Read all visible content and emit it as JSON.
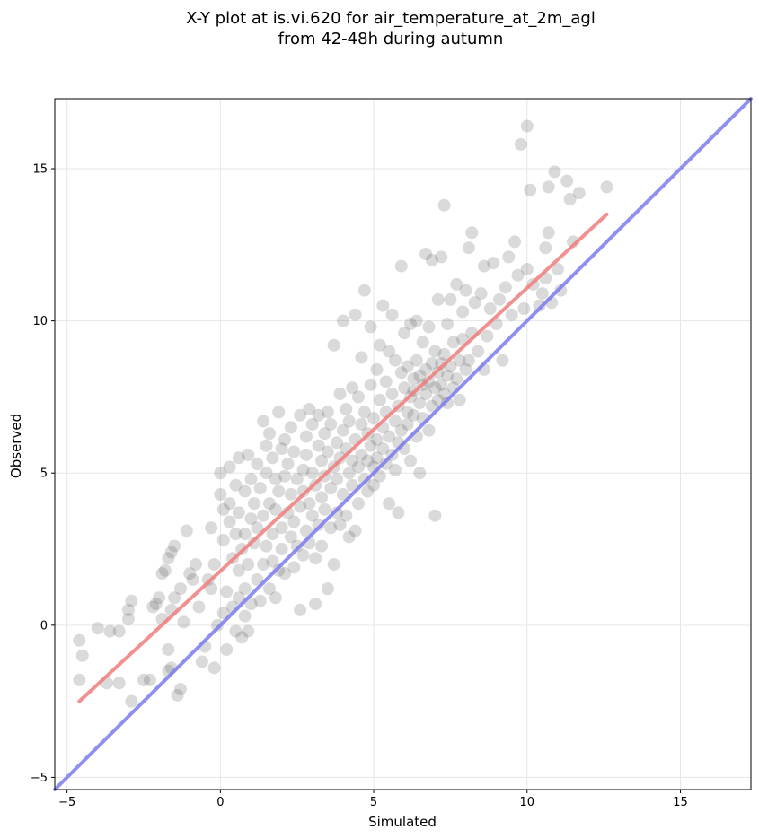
{
  "chart_data": {
    "type": "scatter",
    "title_line1": "X-Y plot at is.vi.620 for air_temperature_at_2m_agl",
    "title_line2": "from 42-48h during autumn",
    "xlabel": "Simulated",
    "ylabel": "Observed",
    "xlim": [
      -5.4,
      17.3
    ],
    "ylim": [
      -5.4,
      17.3
    ],
    "xticks": [
      -5,
      0,
      5,
      10,
      15
    ],
    "yticks": [
      -5,
      0,
      5,
      10,
      15
    ],
    "xtick_labels": [
      "−5",
      "0",
      "5",
      "10",
      "15"
    ],
    "ytick_labels": [
      "−5",
      "0",
      "5",
      "10",
      "15"
    ],
    "grid": true,
    "point_color": "#555555",
    "identity_line": {
      "color": "#7b7bf0",
      "x": [
        -5.4,
        17.3
      ],
      "y": [
        -5.4,
        17.3
      ]
    },
    "fit_line": {
      "color": "#f07b7b",
      "x": [
        -4.6,
        12.6
      ],
      "y": [
        -2.5,
        13.5
      ]
    },
    "points": [
      [
        -4.6,
        -0.5
      ],
      [
        -4.5,
        -1.0
      ],
      [
        -4.6,
        -1.8
      ],
      [
        -4.0,
        -0.1
      ],
      [
        -3.6,
        -0.2
      ],
      [
        -3.3,
        -0.2
      ],
      [
        -3.7,
        -1.9
      ],
      [
        -3.3,
        -1.9
      ],
      [
        -3.0,
        0.5
      ],
      [
        -3.0,
        0.2
      ],
      [
        -2.9,
        0.8
      ],
      [
        -2.9,
        -2.5
      ],
      [
        -2.5,
        -1.8
      ],
      [
        -2.3,
        -1.8
      ],
      [
        -2.2,
        0.6
      ],
      [
        -2.1,
        0.7
      ],
      [
        -2.0,
        0.9
      ],
      [
        -1.9,
        1.7
      ],
      [
        -1.9,
        0.2
      ],
      [
        -1.8,
        1.8
      ],
      [
        -1.7,
        2.2
      ],
      [
        -1.6,
        2.4
      ],
      [
        -1.6,
        0.5
      ],
      [
        -1.5,
        2.6
      ],
      [
        -1.5,
        0.9
      ],
      [
        -1.7,
        -0.8
      ],
      [
        -1.7,
        -1.5
      ],
      [
        -1.6,
        -1.4
      ],
      [
        -1.4,
        -2.3
      ],
      [
        -1.3,
        -2.1
      ],
      [
        -1.3,
        1.2
      ],
      [
        -1.2,
        0.1
      ],
      [
        -1.1,
        3.1
      ],
      [
        -1.0,
        1.7
      ],
      [
        -0.9,
        1.5
      ],
      [
        -0.8,
        2.0
      ],
      [
        -0.7,
        0.6
      ],
      [
        -0.6,
        -1.2
      ],
      [
        -0.5,
        -0.7
      ],
      [
        -0.4,
        1.5
      ],
      [
        -0.3,
        3.2
      ],
      [
        -0.3,
        1.2
      ],
      [
        -0.2,
        2.0
      ],
      [
        -0.2,
        -1.4
      ],
      [
        -0.1,
        0.0
      ],
      [
        0.0,
        5.0
      ],
      [
        0.0,
        4.3
      ],
      [
        0.1,
        3.8
      ],
      [
        0.1,
        2.8
      ],
      [
        0.1,
        0.4
      ],
      [
        0.2,
        1.1
      ],
      [
        0.2,
        -0.8
      ],
      [
        0.3,
        5.2
      ],
      [
        0.3,
        4.0
      ],
      [
        0.3,
        3.4
      ],
      [
        0.4,
        2.2
      ],
      [
        0.4,
        0.6
      ],
      [
        0.5,
        -0.2
      ],
      [
        0.5,
        4.6
      ],
      [
        0.5,
        3.0
      ],
      [
        0.6,
        5.5
      ],
      [
        0.6,
        3.7
      ],
      [
        0.6,
        1.8
      ],
      [
        0.6,
        0.9
      ],
      [
        0.7,
        2.5
      ],
      [
        0.7,
        -0.4
      ],
      [
        0.8,
        4.4
      ],
      [
        0.8,
        3.0
      ],
      [
        0.8,
        1.2
      ],
      [
        0.8,
        0.3
      ],
      [
        0.9,
        5.6
      ],
      [
        0.9,
        2.0
      ],
      [
        0.9,
        -0.2
      ],
      [
        1.0,
        4.8
      ],
      [
        1.0,
        3.5
      ],
      [
        1.0,
        0.7
      ],
      [
        1.1,
        4.0
      ],
      [
        1.1,
        2.7
      ],
      [
        1.2,
        1.5
      ],
      [
        1.2,
        5.3
      ],
      [
        1.2,
        3.2
      ],
      [
        1.3,
        0.8
      ],
      [
        1.3,
        4.5
      ],
      [
        1.4,
        2.0
      ],
      [
        1.4,
        6.7
      ],
      [
        1.4,
        3.6
      ],
      [
        1.5,
        5.9
      ],
      [
        1.5,
        2.6
      ],
      [
        1.5,
        5.0
      ],
      [
        1.6,
        1.2
      ],
      [
        1.6,
        4.0
      ],
      [
        1.6,
        6.3
      ],
      [
        1.7,
        3.0
      ],
      [
        1.7,
        5.5
      ],
      [
        1.7,
        2.1
      ],
      [
        1.8,
        4.8
      ],
      [
        1.8,
        0.9
      ],
      [
        1.8,
        3.8
      ],
      [
        1.9,
        7.0
      ],
      [
        1.9,
        1.8
      ],
      [
        1.9,
        4.4
      ],
      [
        2.0,
        5.8
      ],
      [
        2.0,
        3.2
      ],
      [
        2.0,
        2.5
      ],
      [
        2.1,
        6.1
      ],
      [
        2.1,
        4.9
      ],
      [
        2.1,
        1.7
      ],
      [
        2.2,
        3.7
      ],
      [
        2.2,
        5.3
      ],
      [
        2.3,
        2.9
      ],
      [
        2.3,
        6.5
      ],
      [
        2.3,
        4.3
      ],
      [
        2.4,
        3.4
      ],
      [
        2.4,
        1.9
      ],
      [
        2.4,
        5.7
      ],
      [
        2.5,
        4.8
      ],
      [
        2.5,
        2.6
      ],
      [
        2.6,
        6.9
      ],
      [
        2.6,
        3.9
      ],
      [
        2.6,
        0.5
      ],
      [
        2.7,
        5.1
      ],
      [
        2.7,
        2.3
      ],
      [
        2.7,
        4.4
      ],
      [
        2.8,
        6.2
      ],
      [
        2.8,
        3.1
      ],
      [
        2.8,
        5.6
      ],
      [
        2.9,
        4.0
      ],
      [
        2.9,
        7.1
      ],
      [
        2.9,
        2.7
      ],
      [
        3.0,
        5.0
      ],
      [
        3.0,
        3.6
      ],
      [
        3.0,
        6.6
      ],
      [
        3.1,
        2.2
      ],
      [
        3.1,
        4.6
      ],
      [
        3.1,
        0.7
      ],
      [
        3.2,
        5.9
      ],
      [
        3.2,
        3.3
      ],
      [
        3.2,
        6.9
      ],
      [
        3.3,
        4.2
      ],
      [
        3.3,
        5.4
      ],
      [
        3.3,
        2.6
      ],
      [
        3.4,
        6.3
      ],
      [
        3.4,
        3.8
      ],
      [
        3.4,
        4.9
      ],
      [
        3.5,
        7.0
      ],
      [
        3.5,
        1.2
      ],
      [
        3.5,
        5.7
      ],
      [
        3.6,
        3.2
      ],
      [
        3.6,
        4.5
      ],
      [
        3.6,
        6.6
      ],
      [
        3.7,
        5.2
      ],
      [
        3.7,
        2.0
      ],
      [
        3.7,
        9.2
      ],
      [
        3.8,
        3.7
      ],
      [
        3.8,
        6.0
      ],
      [
        3.8,
        4.8
      ],
      [
        3.9,
        7.6
      ],
      [
        3.9,
        5.5
      ],
      [
        3.9,
        3.3
      ],
      [
        4.0,
        6.4
      ],
      [
        4.0,
        4.3
      ],
      [
        4.0,
        10.0
      ],
      [
        4.1,
        5.8
      ],
      [
        4.1,
        3.6
      ],
      [
        4.1,
        7.1
      ],
      [
        4.2,
        5.0
      ],
      [
        4.2,
        2.9
      ],
      [
        4.2,
        6.7
      ],
      [
        4.3,
        4.6
      ],
      [
        4.3,
        7.8
      ],
      [
        4.3,
        5.4
      ],
      [
        4.4,
        3.1
      ],
      [
        4.4,
        6.1
      ],
      [
        4.4,
        10.2
      ],
      [
        4.5,
        5.2
      ],
      [
        4.5,
        7.5
      ],
      [
        4.5,
        4.0
      ],
      [
        4.6,
        6.6
      ],
      [
        4.6,
        5.6
      ],
      [
        4.6,
        8.8
      ],
      [
        4.7,
        4.8
      ],
      [
        4.7,
        7.0
      ],
      [
        4.7,
        11.0
      ],
      [
        4.8,
        5.4
      ],
      [
        4.8,
        6.3
      ],
      [
        4.8,
        4.4
      ],
      [
        4.9,
        7.9
      ],
      [
        4.9,
        5.9
      ],
      [
        4.9,
        9.8
      ],
      [
        5.0,
        5.2
      ],
      [
        5.0,
        6.8
      ],
      [
        5.0,
        4.6
      ],
      [
        5.1,
        8.4
      ],
      [
        5.1,
        6.1
      ],
      [
        5.1,
        5.5
      ],
      [
        5.2,
        7.4
      ],
      [
        5.2,
        4.9
      ],
      [
        5.2,
        9.2
      ],
      [
        5.3,
        6.5
      ],
      [
        5.3,
        5.8
      ],
      [
        5.3,
        10.5
      ],
      [
        5.4,
        7.0
      ],
      [
        5.4,
        5.3
      ],
      [
        5.4,
        8.0
      ],
      [
        5.5,
        6.2
      ],
      [
        5.5,
        4.0
      ],
      [
        5.5,
        9.0
      ],
      [
        5.6,
        7.6
      ],
      [
        5.6,
        5.6
      ],
      [
        5.6,
        10.2
      ],
      [
        5.7,
        6.7
      ],
      [
        5.7,
        5.1
      ],
      [
        5.7,
        8.7
      ],
      [
        5.8,
        7.2
      ],
      [
        5.8,
        6.0
      ],
      [
        5.8,
        3.7
      ],
      [
        5.9,
        8.3
      ],
      [
        5.9,
        6.4
      ],
      [
        5.9,
        11.8
      ],
      [
        6.0,
        7.8
      ],
      [
        6.0,
        5.8
      ],
      [
        6.0,
        9.6
      ],
      [
        6.1,
        7.0
      ],
      [
        6.1,
        6.6
      ],
      [
        6.1,
        8.5
      ],
      [
        6.2,
        7.5
      ],
      [
        6.2,
        5.4
      ],
      [
        6.2,
        9.9
      ],
      [
        6.3,
        8.1
      ],
      [
        6.3,
        6.9
      ],
      [
        6.3,
        7.7
      ],
      [
        6.4,
        6.2
      ],
      [
        6.4,
        8.7
      ],
      [
        6.4,
        10.0
      ],
      [
        6.5,
        7.3
      ],
      [
        6.5,
        8.2
      ],
      [
        6.5,
        5.0
      ],
      [
        6.6,
        7.9
      ],
      [
        6.6,
        6.8
      ],
      [
        6.6,
        9.3
      ],
      [
        6.7,
        8.4
      ],
      [
        6.7,
        7.6
      ],
      [
        6.7,
        12.2
      ],
      [
        6.8,
        8.0
      ],
      [
        6.8,
        6.4
      ],
      [
        6.8,
        9.8
      ],
      [
        6.9,
        7.2
      ],
      [
        6.9,
        8.6
      ],
      [
        6.9,
        12.0
      ],
      [
        7.0,
        7.8
      ],
      [
        7.0,
        3.6
      ],
      [
        7.0,
        9.0
      ],
      [
        7.1,
        8.3
      ],
      [
        7.1,
        7.4
      ],
      [
        7.1,
        10.7
      ],
      [
        7.2,
        7.9
      ],
      [
        7.2,
        8.6
      ],
      [
        7.2,
        12.1
      ],
      [
        7.3,
        7.6
      ],
      [
        7.3,
        13.8
      ],
      [
        7.3,
        8.9
      ],
      [
        7.4,
        8.2
      ],
      [
        7.4,
        9.9
      ],
      [
        7.4,
        7.3
      ],
      [
        7.5,
        8.5
      ],
      [
        7.5,
        10.7
      ],
      [
        7.6,
        7.8
      ],
      [
        7.6,
        9.3
      ],
      [
        7.7,
        8.1
      ],
      [
        7.7,
        11.2
      ],
      [
        7.8,
        8.7
      ],
      [
        7.8,
        7.4
      ],
      [
        7.9,
        9.4
      ],
      [
        7.9,
        10.3
      ],
      [
        8.0,
        8.4
      ],
      [
        8.0,
        11.0
      ],
      [
        8.1,
        12.4
      ],
      [
        8.1,
        8.7
      ],
      [
        8.2,
        12.9
      ],
      [
        8.2,
        9.6
      ],
      [
        8.3,
        10.6
      ],
      [
        8.4,
        9.0
      ],
      [
        8.5,
        10.9
      ],
      [
        8.6,
        8.4
      ],
      [
        8.6,
        11.8
      ],
      [
        8.7,
        9.5
      ],
      [
        8.8,
        10.4
      ],
      [
        8.9,
        11.9
      ],
      [
        9.0,
        9.9
      ],
      [
        9.1,
        10.7
      ],
      [
        9.2,
        8.7
      ],
      [
        9.3,
        11.1
      ],
      [
        9.4,
        12.1
      ],
      [
        9.5,
        10.2
      ],
      [
        9.6,
        12.6
      ],
      [
        9.7,
        11.5
      ],
      [
        9.8,
        15.8
      ],
      [
        9.9,
        10.4
      ],
      [
        10.0,
        11.7
      ],
      [
        10.0,
        16.4
      ],
      [
        10.1,
        14.3
      ],
      [
        10.2,
        11.2
      ],
      [
        10.4,
        10.5
      ],
      [
        10.5,
        10.9
      ],
      [
        10.6,
        11.4
      ],
      [
        10.6,
        12.4
      ],
      [
        10.7,
        14.4
      ],
      [
        10.7,
        12.9
      ],
      [
        10.8,
        10.6
      ],
      [
        10.9,
        14.9
      ],
      [
        11.0,
        11.7
      ],
      [
        11.1,
        11.0
      ],
      [
        11.3,
        14.6
      ],
      [
        11.4,
        14.0
      ],
      [
        11.5,
        12.6
      ],
      [
        11.7,
        14.2
      ],
      [
        12.6,
        14.4
      ]
    ]
  }
}
